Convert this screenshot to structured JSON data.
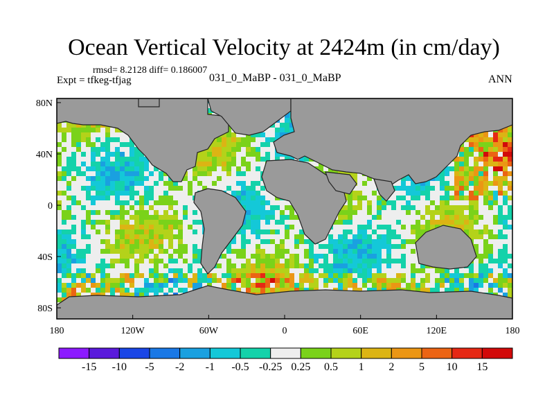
{
  "title": "Ocean Vertical Velocity at 2424m (in cm/day)",
  "stats": "rmsd= 8.2128  diff= 0.186007",
  "expt": "Expt = tfkeg-tfjag",
  "center_label": "031_0_MaBP - 031_0_MaBP",
  "right_label": "ANN",
  "lon_ticks": [
    "180",
    "120W",
    "60W",
    "0",
    "60E",
    "120E",
    "180"
  ],
  "lat_ticks": [
    "80N",
    "40N",
    "0",
    "40S",
    "80S"
  ],
  "colorbar": {
    "labels": [
      "-15",
      "-10",
      "-5",
      "-2",
      "-1",
      "-0.5",
      "-0.25",
      "0.25",
      "0.5",
      "1",
      "2",
      "5",
      "10",
      "15"
    ],
    "colors": [
      "#8c1aff",
      "#5a1adc",
      "#1a46e6",
      "#1a78e6",
      "#1aa0e0",
      "#14c8d8",
      "#14d2aa",
      "#eeeeee",
      "#7ad21a",
      "#b4d21a",
      "#dcb414",
      "#eb9614",
      "#eb6414",
      "#e62814",
      "#d20a0a"
    ]
  },
  "land_color": "#9a9a9a"
}
